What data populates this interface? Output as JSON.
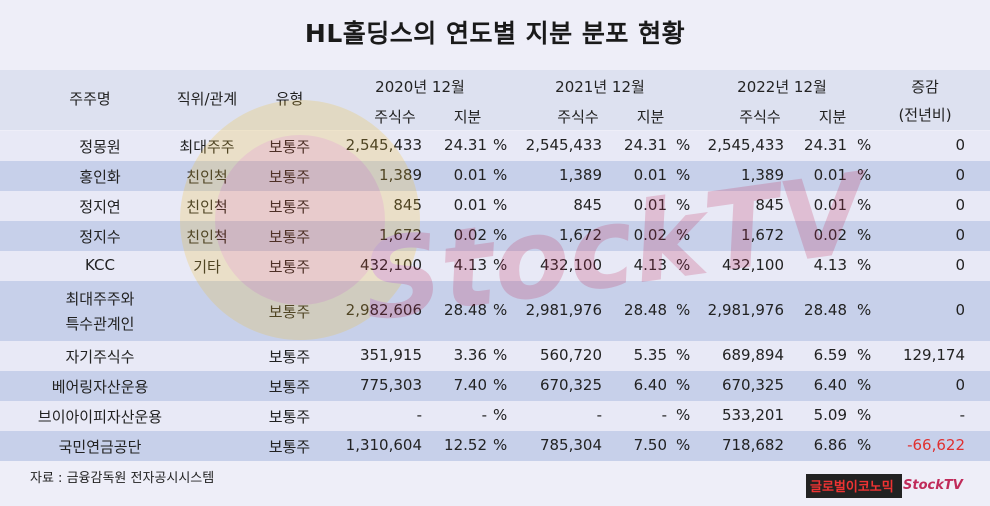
{
  "title": "HL홀딩스의 연도별 지분 분포 현황",
  "header": {
    "shareholder": "주주명",
    "position": "직위/관계",
    "type": "유형",
    "years": [
      "2020년 12월",
      "2021년 12월",
      "2022년 12월"
    ],
    "shares": "주식수",
    "stake": "지분",
    "change_1": "증감",
    "change_2": "(전년비)"
  },
  "percent_sign": "%",
  "rows": [
    {
      "name": "정몽원",
      "position": "최대주주",
      "type": "보통주",
      "y2020": [
        "2,545,433",
        "24.31"
      ],
      "y2021": [
        "2,545,433",
        "24.31"
      ],
      "y2022": [
        "2,545,433",
        "24.31"
      ],
      "change": "0"
    },
    {
      "name": "홍인화",
      "position": "친인척",
      "type": "보통주",
      "y2020": [
        "1,389",
        "0.01"
      ],
      "y2021": [
        "1,389",
        "0.01"
      ],
      "y2022": [
        "1,389",
        "0.01"
      ],
      "change": "0"
    },
    {
      "name": "정지연",
      "position": "친인척",
      "type": "보통주",
      "y2020": [
        "845",
        "0.01"
      ],
      "y2021": [
        "845",
        "0.01"
      ],
      "y2022": [
        "845",
        "0.01"
      ],
      "change": "0"
    },
    {
      "name": "정지수",
      "position": "친인척",
      "type": "보통주",
      "y2020": [
        "1,672",
        "0.02"
      ],
      "y2021": [
        "1,672",
        "0.02"
      ],
      "y2022": [
        "1,672",
        "0.02"
      ],
      "change": "0"
    },
    {
      "name": "KCC",
      "position": "기타",
      "type": "보통주",
      "y2020": [
        "432,100",
        "4.13"
      ],
      "y2021": [
        "432,100",
        "4.13"
      ],
      "y2022": [
        "432,100",
        "4.13"
      ],
      "change": "0"
    },
    {
      "name": "최대주주와 특수관계인",
      "name_line1": "최대주주와",
      "name_line2": "특수관계인",
      "position": "",
      "type": "보통주",
      "y2020": [
        "2,982,606",
        "28.48"
      ],
      "y2021": [
        "2,981,976",
        "28.48"
      ],
      "y2022": [
        "2,981,976",
        "28.48"
      ],
      "change": "0"
    },
    {
      "name": "자기주식수",
      "position": "",
      "type": "보통주",
      "y2020": [
        "351,915",
        "3.36"
      ],
      "y2021": [
        "560,720",
        "5.35"
      ],
      "y2022": [
        "689,894",
        "6.59"
      ],
      "change": "129,174"
    },
    {
      "name": "베어링자산운용",
      "position": "",
      "type": "보통주",
      "y2020": [
        "775,303",
        "7.40"
      ],
      "y2021": [
        "670,325",
        "6.40"
      ],
      "y2022": [
        "670,325",
        "6.40"
      ],
      "change": "0"
    },
    {
      "name": "브이아이피자산운용",
      "position": "",
      "type": "보통주",
      "y2020": [
        "-",
        "-"
      ],
      "y2021": [
        "-",
        "-"
      ],
      "y2022": [
        "533,201",
        "5.09"
      ],
      "change": "-"
    },
    {
      "name": "국민연금공단",
      "position": "",
      "type": "보통주",
      "y2020": [
        "1,310,604",
        "12.52"
      ],
      "y2021": [
        "785,304",
        "7.50"
      ],
      "y2022": [
        "718,682",
        "6.86"
      ],
      "change": "-66,622"
    }
  ],
  "source": "자료 : 금융감독원 전자공시시스템",
  "logos": {
    "global_economic": "글로벌이코노믹",
    "stocktv": "StockTV"
  },
  "watermark_text": "StockTV",
  "colors": {
    "header_bg": "#dde1f0",
    "row_dark": "#c7d0ea",
    "row_light": "#e8e9f6",
    "negative": "#e03030"
  }
}
